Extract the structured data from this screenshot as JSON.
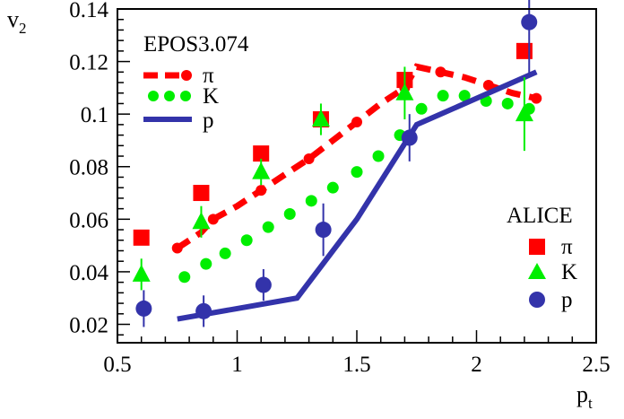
{
  "chart_data": {
    "type": "line",
    "title": "",
    "xlabel": "p",
    "xlabel_sub": "t",
    "ylabel": "v",
    "ylabel_sub": "2",
    "xlim": [
      0.5,
      2.5
    ],
    "ylim": [
      0.013,
      0.14
    ],
    "xticks": [
      0.5,
      1,
      1.5,
      2,
      2.5
    ],
    "xtick_labels": [
      "0.5",
      "1",
      "1.5",
      "2",
      "2.5"
    ],
    "yticks": [
      0.02,
      0.04,
      0.06,
      0.08,
      0.1,
      0.12,
      0.14
    ],
    "ytick_labels": [
      "0.02",
      "0.04",
      "0.06",
      "0.08",
      "0.1",
      "0.12",
      "0.14"
    ],
    "grid": false,
    "model_legend": {
      "title": "EPOS3.074",
      "position": "top-left"
    },
    "data_legend": {
      "title": "ALICE",
      "position": "bottom-right"
    },
    "model_series": [
      {
        "name": "π",
        "style": "dash-dot",
        "color": "#ff0000",
        "x": [
          0.75,
          0.85,
          0.9,
          1.0,
          1.1,
          1.2,
          1.3,
          1.4,
          1.5,
          1.6,
          1.7,
          1.75,
          1.85,
          1.95,
          2.05,
          2.15,
          2.25
        ],
        "y": [
          0.049,
          0.055,
          0.06,
          0.065,
          0.071,
          0.077,
          0.083,
          0.09,
          0.097,
          0.104,
          0.11,
          0.118,
          0.116,
          0.114,
          0.111,
          0.108,
          0.106
        ]
      },
      {
        "name": "K",
        "style": "dotted",
        "color": "#00ee00",
        "x": [
          0.78,
          0.87,
          0.95,
          1.04,
          1.13,
          1.22,
          1.31,
          1.4,
          1.5,
          1.59,
          1.68,
          1.77,
          1.86,
          1.95,
          2.04,
          2.13,
          2.22
        ],
        "y": [
          0.038,
          0.043,
          0.047,
          0.052,
          0.057,
          0.062,
          0.067,
          0.072,
          0.078,
          0.084,
          0.092,
          0.102,
          0.107,
          0.107,
          0.105,
          0.104,
          0.102
        ]
      },
      {
        "name": "p",
        "style": "solid",
        "color": "#3333aa",
        "x": [
          0.75,
          1.0,
          1.25,
          1.5,
          1.75,
          2.0,
          2.25
        ],
        "y": [
          0.022,
          0.026,
          0.03,
          0.06,
          0.096,
          0.106,
          0.116
        ]
      }
    ],
    "data_series": [
      {
        "name": "π",
        "marker": "square",
        "color": "#ff0000",
        "x": [
          0.6,
          0.85,
          1.1,
          1.35,
          1.7,
          2.2
        ],
        "y": [
          0.053,
          0.07,
          0.085,
          0.098,
          0.113,
          0.124
        ],
        "err": [
          0,
          0,
          0,
          0,
          0,
          0
        ]
      },
      {
        "name": "K",
        "marker": "triangle",
        "color": "#00ee00",
        "x": [
          0.6,
          0.85,
          1.1,
          1.35,
          1.7,
          2.2
        ],
        "y": [
          0.039,
          0.059,
          0.078,
          0.098,
          0.108,
          0.1
        ],
        "err": [
          0.006,
          0.006,
          0.005,
          0.006,
          0.01,
          0.014
        ]
      },
      {
        "name": "p",
        "marker": "circle",
        "color": "#3333aa",
        "x": [
          0.61,
          0.86,
          1.11,
          1.36,
          1.72,
          2.22
        ],
        "y": [
          0.026,
          0.025,
          0.035,
          0.056,
          0.091,
          0.135
        ],
        "err": [
          0.007,
          0.006,
          0.006,
          0.01,
          0.009,
          0.02
        ]
      }
    ]
  }
}
